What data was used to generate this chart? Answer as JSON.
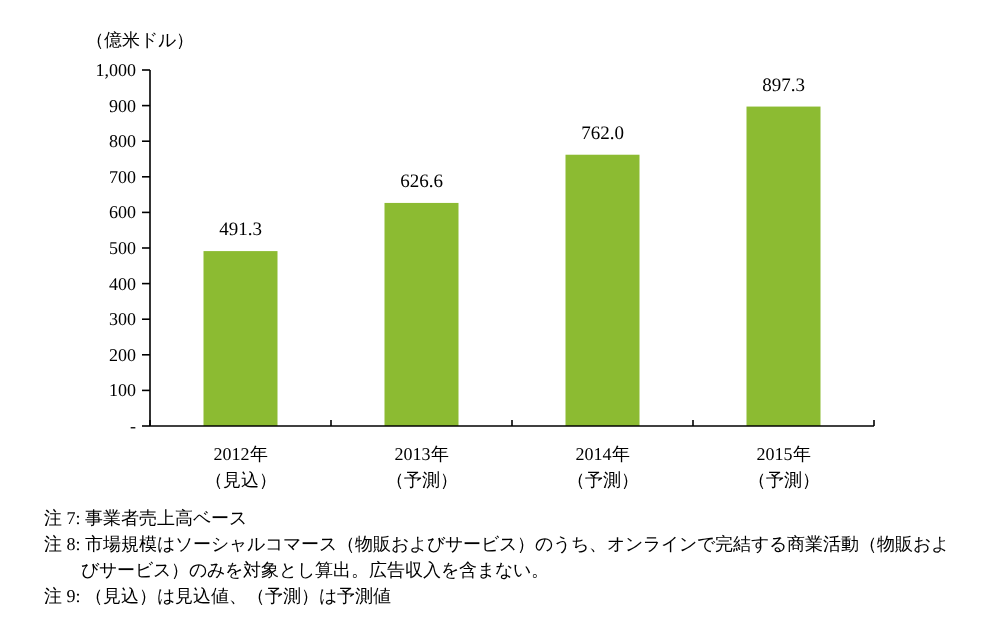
{
  "chart_data": {
    "type": "bar",
    "ylabel": "（億米ドル）",
    "categories": [
      "2012年（見込）",
      "2013年（予測）",
      "2014年（予測）",
      "2015年（予測）"
    ],
    "values": [
      491.3,
      626.6,
      762.0,
      897.3
    ],
    "value_labels": [
      "491.3",
      "626.6",
      "762.0",
      "897.3"
    ],
    "color": "#8cbb32",
    "ylim": [
      0,
      1000
    ],
    "yticks": [
      {
        "value": 0,
        "label": "-"
      },
      100,
      200,
      300,
      400,
      500,
      600,
      700,
      800,
      900,
      {
        "value": 1000,
        "label": "1,000"
      }
    ],
    "grid": false,
    "annotations": [
      "注 7: 事業者売上高ベース",
      "注 8: 市場規模はソーシャルコマース（物販およびサービス）のうち、オンラインで完結する商業活動（物販およびサービス）のみを対象とし算出。広告収入を含まない。",
      "注 9: （見込）は見込値、（予測）は予測値"
    ]
  }
}
